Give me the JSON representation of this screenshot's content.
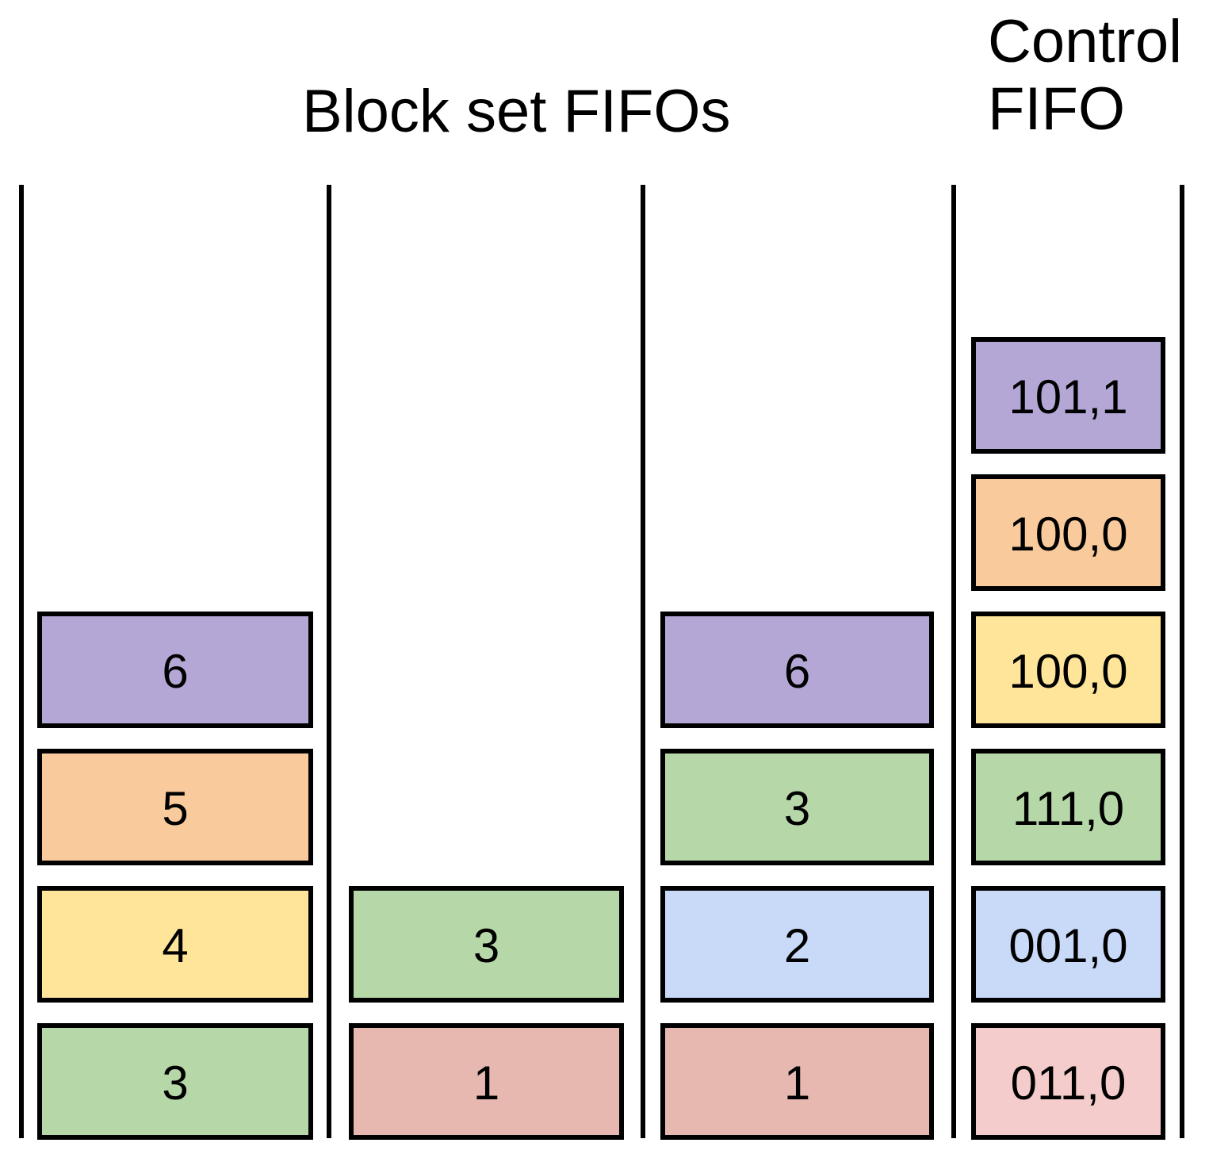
{
  "titles": {
    "block_set": "Block set FIFOs",
    "control_line1": "Control",
    "control_line2": "FIFO"
  },
  "palette": {
    "purple": "#b4a7d6",
    "orange": "#f9cb9c",
    "yellow": "#ffe599",
    "green": "#b6d7a8",
    "blue": "#c9daf8",
    "salmon": "#e6b8af",
    "pink": "#f4cccc"
  },
  "block_set_fifos": [
    {
      "name": "fifo-1",
      "items": [
        {
          "label": "3",
          "color": "green",
          "row": 1
        },
        {
          "label": "4",
          "color": "yellow",
          "row": 2
        },
        {
          "label": "5",
          "color": "orange",
          "row": 3
        },
        {
          "label": "6",
          "color": "purple",
          "row": 4
        }
      ]
    },
    {
      "name": "fifo-2",
      "items": [
        {
          "label": "1",
          "color": "salmon",
          "row": 1
        },
        {
          "label": "3",
          "color": "green",
          "row": 2
        }
      ]
    },
    {
      "name": "fifo-3",
      "items": [
        {
          "label": "1",
          "color": "salmon",
          "row": 1
        },
        {
          "label": "2",
          "color": "blue",
          "row": 2
        },
        {
          "label": "3",
          "color": "green",
          "row": 3
        },
        {
          "label": "6",
          "color": "purple",
          "row": 4
        }
      ]
    }
  ],
  "control_fifo": {
    "items": [
      {
        "label": "011,0",
        "color": "pink",
        "row": 1
      },
      {
        "label": "001,0",
        "color": "blue",
        "row": 2
      },
      {
        "label": "111,0",
        "color": "green",
        "row": 3
      },
      {
        "label": "100,0",
        "color": "yellow",
        "row": 4
      },
      {
        "label": "100,0",
        "color": "orange",
        "row": 5
      },
      {
        "label": "101,1",
        "color": "purple",
        "row": 6
      }
    ]
  }
}
